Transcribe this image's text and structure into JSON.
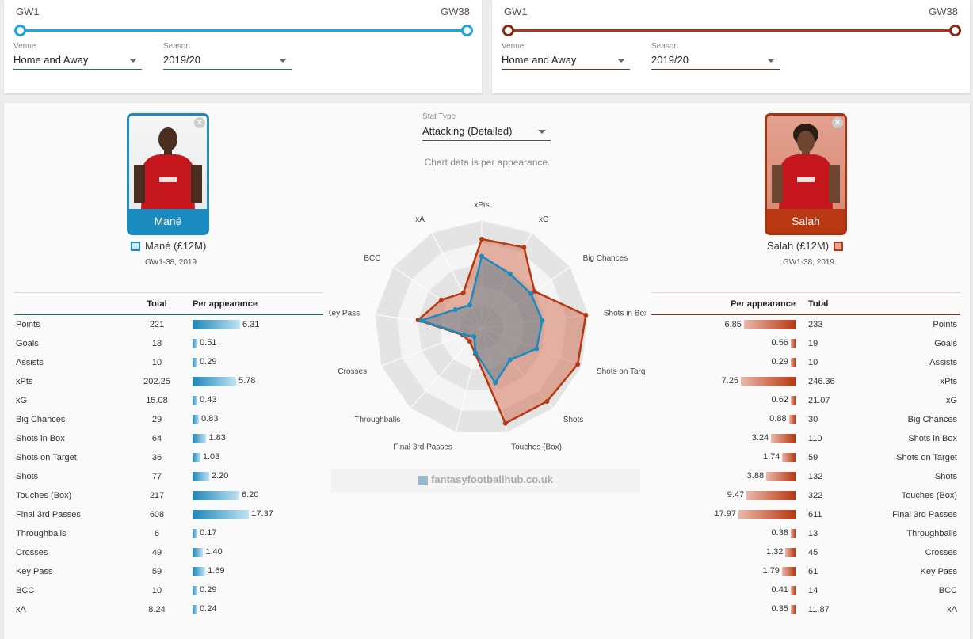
{
  "filters": {
    "left": {
      "gw_start": "GW1",
      "gw_end": "GW38",
      "venue_label": "Venue",
      "venue_value": "Home and Away",
      "season_label": "Season",
      "season_value": "2019/20"
    },
    "right": {
      "gw_start": "GW1",
      "gw_end": "GW38",
      "venue_label": "Venue",
      "venue_value": "Home and Away",
      "season_label": "Season",
      "season_value": "2019/20"
    }
  },
  "colors": {
    "left": "#1a8bbf",
    "right": "#b73812"
  },
  "stat_type": {
    "label": "Stat Type",
    "value": "Attacking (Detailed)"
  },
  "chart_note": "Chart data is per appearance.",
  "watermark": "fantasyfootballhub.co.uk",
  "players": {
    "left": {
      "name": "Mané",
      "legend": "Mané (£12M)",
      "sub": "GW1-38, 2019"
    },
    "right": {
      "name": "Salah",
      "legend": "Salah (£12M)",
      "sub": "GW1-38, 2019"
    }
  },
  "table_headers": {
    "total": "Total",
    "per_app": "Per appearance"
  },
  "stats": [
    {
      "label": "Points",
      "left_total": "221",
      "left_per": "6.31",
      "right_per": "6.85",
      "right_total": "233"
    },
    {
      "label": "Goals",
      "left_total": "18",
      "left_per": "0.51",
      "right_per": "0.56",
      "right_total": "19"
    },
    {
      "label": "Assists",
      "left_total": "10",
      "left_per": "0.29",
      "right_per": "0.29",
      "right_total": "10"
    },
    {
      "label": "xPts",
      "left_total": "202.25",
      "left_per": "5.78",
      "right_per": "7.25",
      "right_total": "246.36"
    },
    {
      "label": "xG",
      "left_total": "15.08",
      "left_per": "0.43",
      "right_per": "0.62",
      "right_total": "21.07"
    },
    {
      "label": "Big Chances",
      "left_total": "29",
      "left_per": "0.83",
      "right_per": "0.88",
      "right_total": "30"
    },
    {
      "label": "Shots in Box",
      "left_total": "64",
      "left_per": "1.83",
      "right_per": "3.24",
      "right_total": "110"
    },
    {
      "label": "Shots on Target",
      "left_total": "36",
      "left_per": "1.03",
      "right_per": "1.74",
      "right_total": "59"
    },
    {
      "label": "Shots",
      "left_total": "77",
      "left_per": "2.20",
      "right_per": "3.88",
      "right_total": "132"
    },
    {
      "label": "Touches (Box)",
      "left_total": "217",
      "left_per": "6.20",
      "right_per": "9.47",
      "right_total": "322"
    },
    {
      "label": "Final 3rd Passes",
      "left_total": "608",
      "left_per": "17.37",
      "right_per": "17.97",
      "right_total": "611"
    },
    {
      "label": "Throughballs",
      "left_total": "6",
      "left_per": "0.17",
      "right_per": "0.38",
      "right_total": "13"
    },
    {
      "label": "Crosses",
      "left_total": "49",
      "left_per": "1.40",
      "right_per": "1.32",
      "right_total": "45"
    },
    {
      "label": "Key Pass",
      "left_total": "59",
      "left_per": "1.69",
      "right_per": "1.79",
      "right_total": "61"
    },
    {
      "label": "BCC",
      "left_total": "10",
      "left_per": "0.29",
      "right_per": "0.41",
      "right_total": "14"
    },
    {
      "label": "xA",
      "left_total": "8.24",
      "left_per": "0.24",
      "right_per": "0.35",
      "right_total": "11.87"
    }
  ],
  "chart_data": {
    "type": "radar",
    "axes": [
      "xPts",
      "xG",
      "Big Chances",
      "Shots in Box",
      "Shots on Target",
      "Shots",
      "Touches (Box)",
      "Final 3rd Passes",
      "Throughballs",
      "Crosses",
      "Key Pass",
      "BCC",
      "xA"
    ],
    "range": [
      0,
      1
    ],
    "series": [
      {
        "name": "Mané (£12M)",
        "values": [
          0.67,
          0.57,
          0.56,
          0.57,
          0.55,
          0.4,
          0.53,
          0.24,
          0.11,
          0.18,
          0.57,
          0.3,
          0.24
        ]
      },
      {
        "name": "Salah (£12M)",
        "values": [
          0.83,
          0.85,
          0.6,
          0.98,
          0.96,
          0.92,
          0.92,
          0.25,
          0.17,
          0.19,
          0.6,
          0.46,
          0.37
        ]
      }
    ]
  }
}
